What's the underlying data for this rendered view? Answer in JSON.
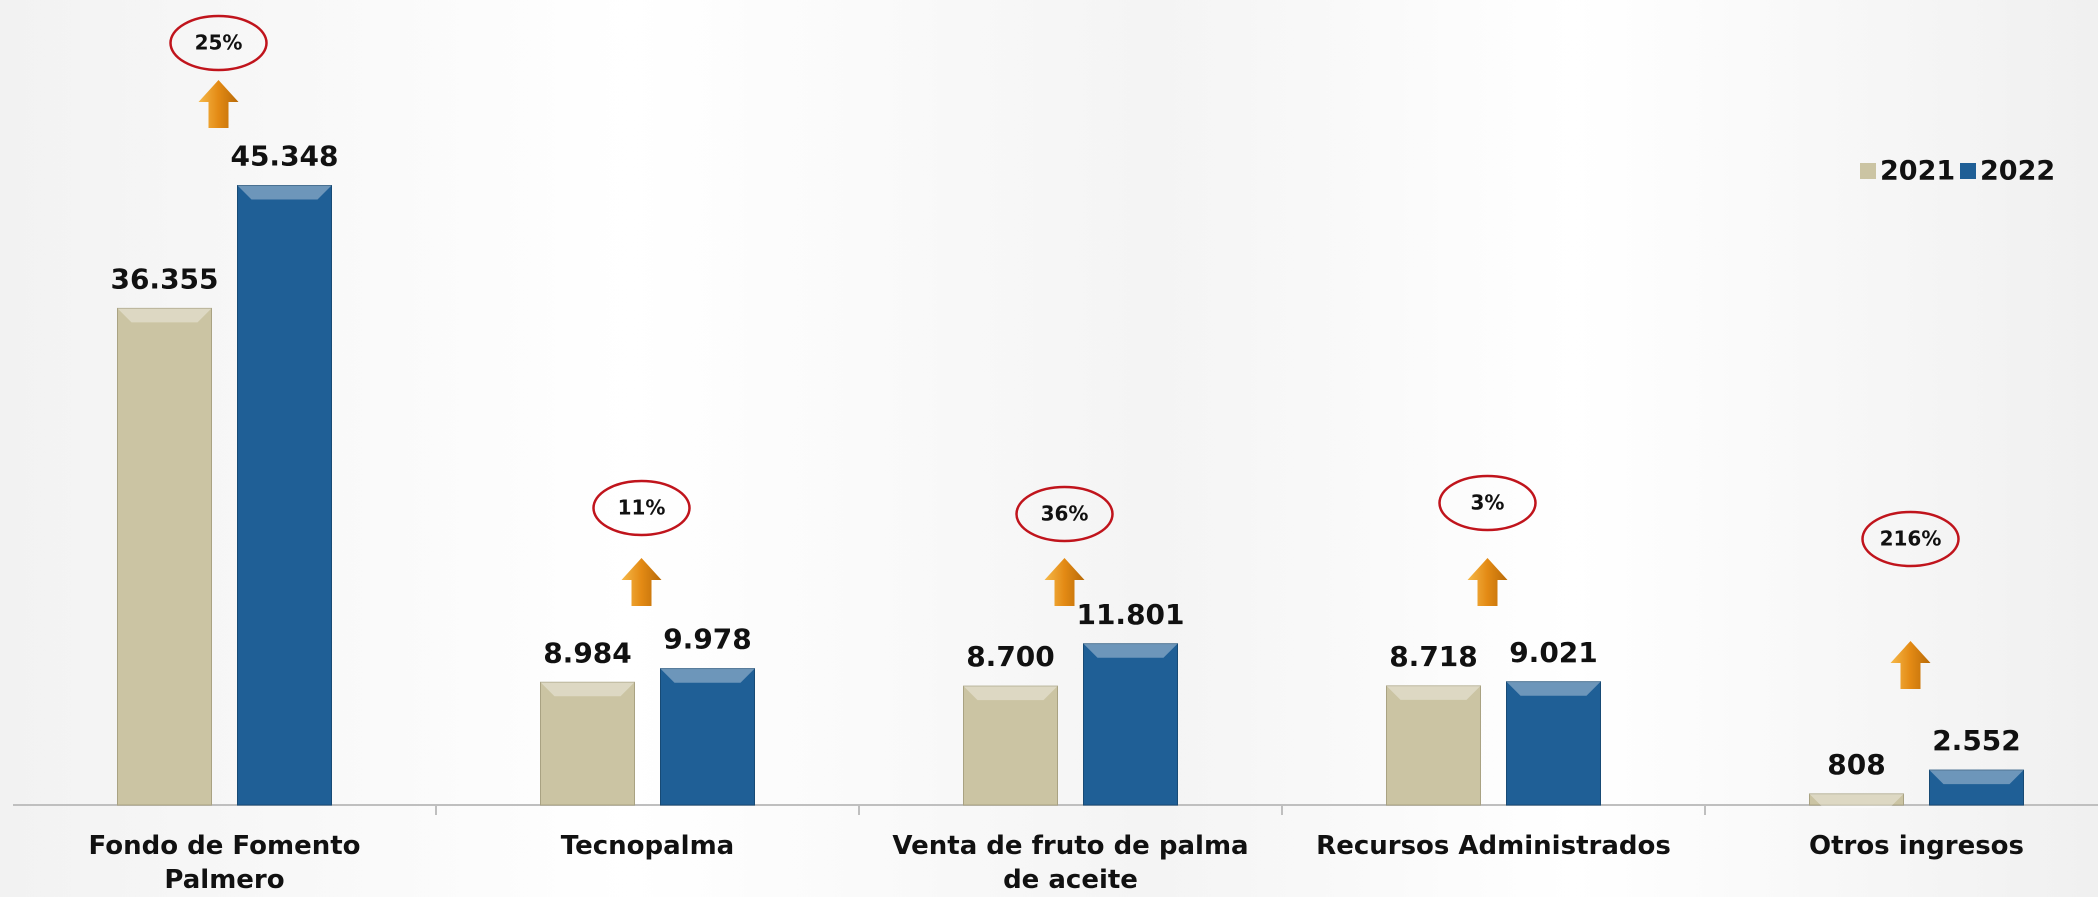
{
  "chart_data": {
    "type": "bar",
    "categories": [
      "Fondo de Fomento Palmero",
      "Tecnopalma",
      "Venta de fruto de palma de aceite",
      "Recursos Administrados",
      "Otros ingresos"
    ],
    "series": [
      {
        "name": "2021",
        "color": "#cbc4a3",
        "values": [
          36355,
          8984,
          8700,
          8718,
          808
        ],
        "value_labels": [
          "36.355",
          "8.984",
          "8.700",
          "8.718",
          "808"
        ]
      },
      {
        "name": "2022",
        "color": "#1f5f96",
        "values": [
          45348,
          9978,
          11801,
          9021,
          2552
        ],
        "value_labels": [
          "45.348",
          "9.978",
          "11.801",
          "9.021",
          "2.552"
        ]
      }
    ],
    "annotations": [
      "25%",
      "11%",
      "36%",
      "3%",
      "216%"
    ],
    "legend": "upper right"
  }
}
